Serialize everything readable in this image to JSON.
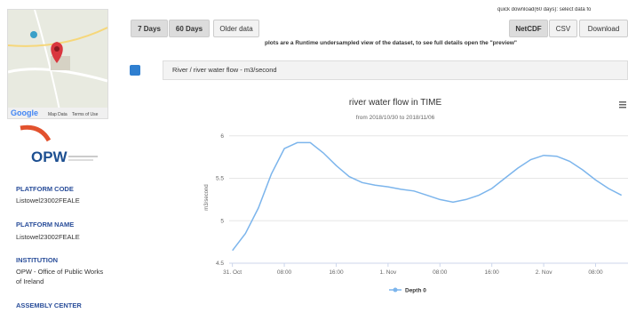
{
  "map": {
    "google": "Google",
    "map_data": "Map Data",
    "terms": "Terms of Use"
  },
  "logo": "OPW",
  "sidebar": [
    {
      "label": "PLATFORM CODE",
      "value": "Listowel23002FEALE"
    },
    {
      "label": "PLATFORM NAME",
      "value": "Listowel23002FEALE"
    },
    {
      "label": "INSTITUTION",
      "value": "OPW - Office of Public Works of Ireland"
    },
    {
      "label": "ASSEMBLY CENTER"
    }
  ],
  "range_buttons": [
    "7 Days",
    "60 Days",
    "Older data"
  ],
  "download_hint": "quick download(60 days): select data fo",
  "download_buttons": [
    "NetCDF",
    "CSV",
    "Download"
  ],
  "note": "plots are a Runtime undersampled view of the dataset, to see full details open the \"preview\"",
  "panel_title": "River / river water flow - m3/second",
  "chart_data": {
    "type": "line",
    "title": "river water flow in TIME",
    "subtitle": "from 2018/10/30 to 2018/11/06",
    "y_label": "m3/second",
    "x": [
      0,
      2,
      4,
      6,
      8,
      10,
      12,
      14,
      16,
      18,
      20,
      22,
      24,
      26,
      28,
      30,
      32,
      34,
      36,
      38,
      40,
      42,
      44,
      46,
      48,
      50,
      52,
      54,
      56,
      58,
      60
    ],
    "series": [
      {
        "name": "Depth 0",
        "color": "#7cb5ec",
        "values": [
          4.65,
          4.85,
          5.15,
          5.55,
          5.85,
          5.92,
          5.92,
          5.8,
          5.65,
          5.52,
          5.45,
          5.42,
          5.4,
          5.37,
          5.35,
          5.3,
          5.25,
          5.22,
          5.25,
          5.3,
          5.38,
          5.5,
          5.62,
          5.72,
          5.77,
          5.76,
          5.7,
          5.6,
          5.48,
          5.38,
          5.3
        ]
      }
    ],
    "xlim": [
      -0.5,
      61
    ],
    "xticks": [
      {
        "value": 0,
        "label": "31. Oct"
      },
      {
        "value": 8,
        "label": "08:00"
      },
      {
        "value": 16,
        "label": "16:00"
      },
      {
        "value": 24,
        "label": "1. Nov"
      },
      {
        "value": 32,
        "label": "08:00"
      },
      {
        "value": 40,
        "label": "16:00"
      },
      {
        "value": 48,
        "label": "2. Nov"
      },
      {
        "value": 56,
        "label": "08:00"
      }
    ],
    "ylim": [
      4.5,
      6.05
    ],
    "yticks": [
      4.5,
      5,
      5.5,
      6
    ],
    "grid": true
  }
}
